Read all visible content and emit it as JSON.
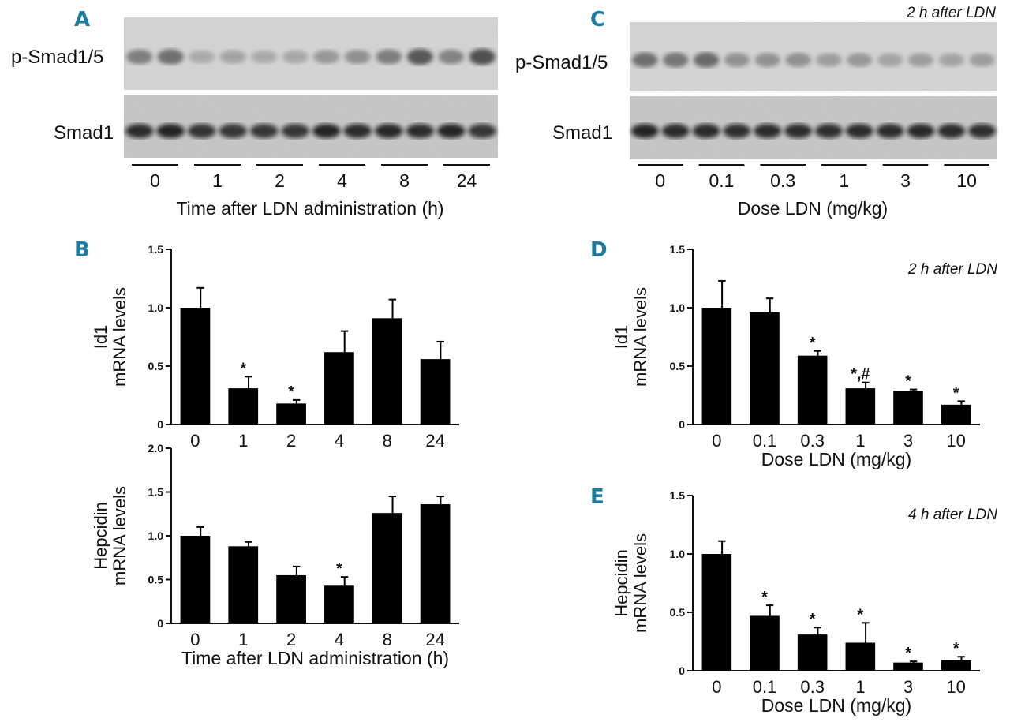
{
  "blot_a": {
    "letter": "A",
    "row1_label": "p-Smad1/5",
    "row2_label": "Smad1",
    "groups": [
      "0",
      "1",
      "2",
      "4",
      "8",
      "24"
    ],
    "xlabel": "Time after LDN administration (h)"
  },
  "blot_c": {
    "letter": "C",
    "note": "2 h after LDN",
    "row1_label": "p-Smad1/5",
    "row2_label": "Smad1",
    "groups": [
      "0",
      "0.1",
      "0.3",
      "1",
      "3",
      "10"
    ],
    "xlabel": "Dose LDN (mg/kg)"
  },
  "chart_data": [
    {
      "id": "B_top",
      "panel": "B",
      "type": "bar",
      "ylabel": "Id1 mRNA levels",
      "ylabel_lines": [
        "Id1",
        "mRNA levels"
      ],
      "categories": [
        "0",
        "1",
        "2",
        "4",
        "8",
        "24"
      ],
      "values": [
        1.0,
        0.31,
        0.18,
        0.62,
        0.91,
        0.56
      ],
      "errors": [
        0.17,
        0.1,
        0.03,
        0.18,
        0.16,
        0.15
      ],
      "marks": [
        "",
        "*",
        "*",
        "",
        "",
        ""
      ],
      "ylim": [
        0,
        1.5
      ],
      "yticks": [
        "0",
        "0.5",
        "1.0",
        "1.5"
      ],
      "xlabel": ""
    },
    {
      "id": "B_bottom",
      "panel": "",
      "type": "bar",
      "ylabel": "Hepcidin mRNA levels",
      "ylabel_lines": [
        "Hepcidin",
        "mRNA levels"
      ],
      "categories": [
        "0",
        "1",
        "2",
        "4",
        "8",
        "24"
      ],
      "values": [
        1.0,
        0.88,
        0.55,
        0.43,
        1.26,
        1.36
      ],
      "errors": [
        0.1,
        0.05,
        0.1,
        0.1,
        0.19,
        0.09
      ],
      "marks": [
        "",
        "",
        "",
        "*",
        "",
        ""
      ],
      "ylim": [
        0,
        2.0
      ],
      "yticks": [
        "0",
        "0.5",
        "1.0",
        "1.5",
        "2.0"
      ],
      "xlabel": "Time after LDN administration (h)"
    },
    {
      "id": "D",
      "panel": "D",
      "type": "bar",
      "note": "2 h after LDN",
      "ylabel": "Id1 mRNA levels",
      "ylabel_lines": [
        "Id1",
        "mRNA levels"
      ],
      "categories": [
        "0",
        "0.1",
        "0.3",
        "1",
        "3",
        "10"
      ],
      "values": [
        1.0,
        0.96,
        0.59,
        0.31,
        0.29,
        0.17
      ],
      "errors": [
        0.23,
        0.12,
        0.04,
        0.05,
        0.01,
        0.03
      ],
      "marks": [
        "",
        "",
        "*",
        "*,#",
        "*",
        "*"
      ],
      "ylim": [
        0,
        1.5
      ],
      "yticks": [
        "0",
        "0.5",
        "1.0",
        "1.5"
      ],
      "xlabel": "Dose LDN (mg/kg)"
    },
    {
      "id": "E",
      "panel": "E",
      "type": "bar",
      "note": "4 h after LDN",
      "ylabel": "Hepcidin mRNA levels",
      "ylabel_lines": [
        "Hepcidin",
        "mRNA levels"
      ],
      "categories": [
        "0",
        "0.1",
        "0.3",
        "1",
        "3",
        "10"
      ],
      "values": [
        1.0,
        0.47,
        0.31,
        0.24,
        0.07,
        0.09
      ],
      "errors": [
        0.11,
        0.09,
        0.06,
        0.17,
        0.01,
        0.03
      ],
      "marks": [
        "",
        "*",
        "*",
        "*",
        "*",
        "*"
      ],
      "ylim": [
        0,
        1.5
      ],
      "yticks": [
        "0",
        "0.5",
        "1.0",
        "1.5"
      ],
      "xlabel": "Dose LDN (mg/kg)"
    }
  ]
}
